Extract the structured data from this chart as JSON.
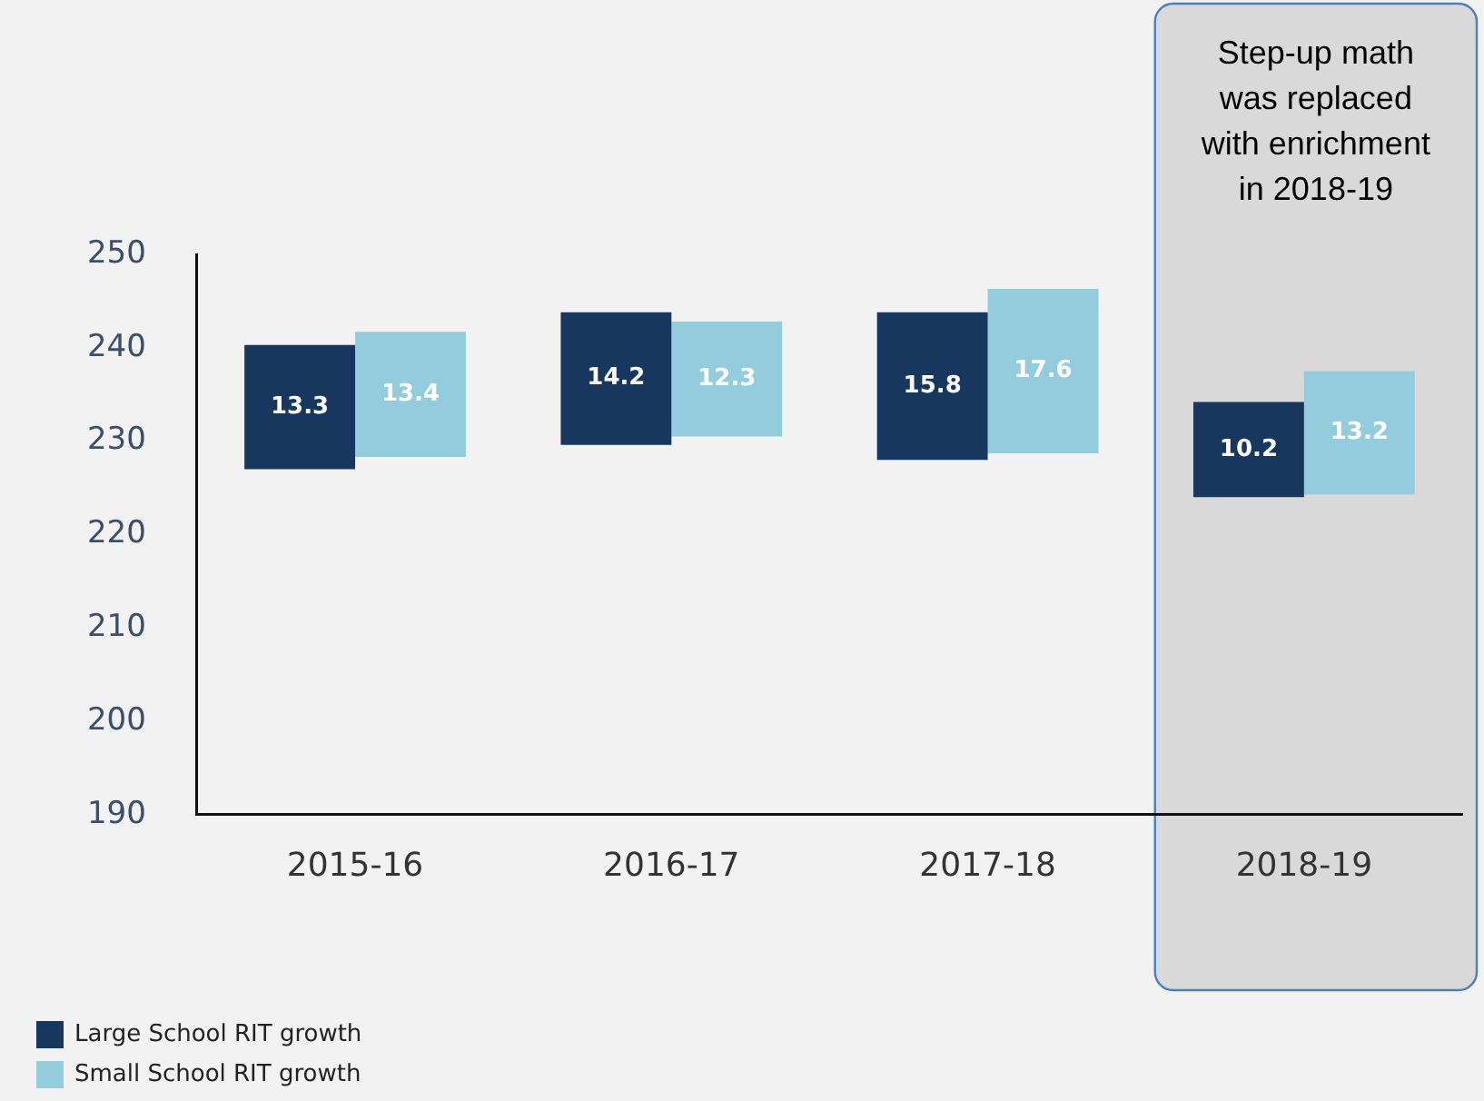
{
  "chart_data": {
    "type": "bar",
    "categories": [
      "2015-16",
      "2016-17",
      "2017-18",
      "2018-19"
    ],
    "series": [
      {
        "name": "Large School RIT growth",
        "color": "#17375e",
        "values": [
          13.3,
          14.2,
          15.8,
          10.2
        ],
        "base": [
          227.0,
          229.6,
          228.0,
          224.0
        ]
      },
      {
        "name": "Small School RIT growth",
        "color": "#93cddd",
        "values": [
          13.4,
          12.3,
          17.6,
          13.2
        ],
        "base": [
          228.3,
          230.5,
          228.7,
          224.3
        ]
      }
    ],
    "ylim": [
      190,
      250
    ],
    "yticks": [
      190,
      200,
      210,
      220,
      230,
      240,
      250
    ],
    "grid": false,
    "legend": "bottom left",
    "data_labels": true,
    "bands": [
      {
        "axis": "x",
        "from": "2018-19",
        "to": "2018-19",
        "label": "Step-up math was replaced with enrichment in 2018-19",
        "color": "#d9d9d9"
      }
    ]
  }
}
